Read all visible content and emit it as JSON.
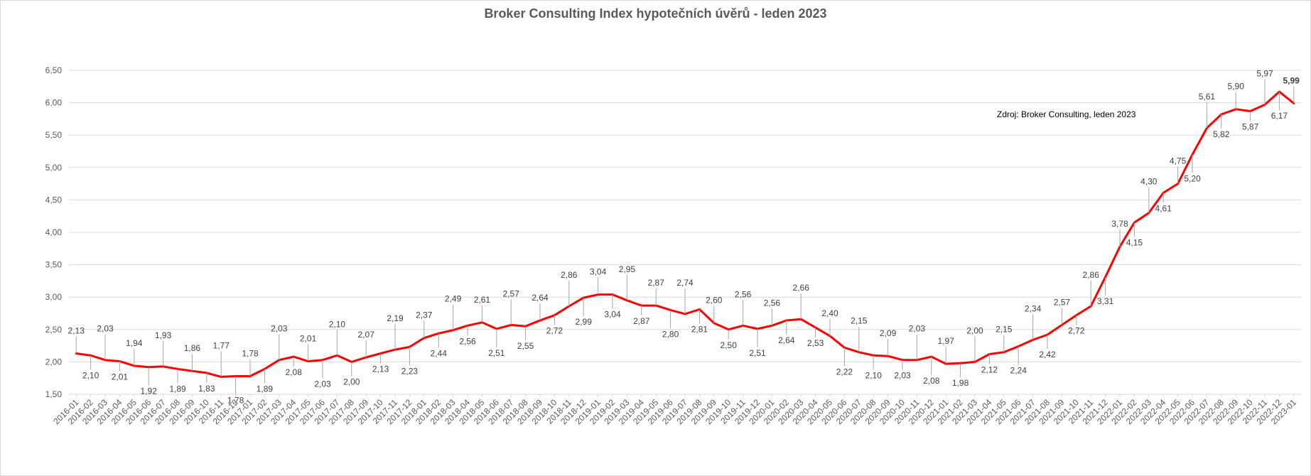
{
  "chart_data": {
    "type": "line",
    "title": "Broker Consulting Index hypotečních úvěrů - leden 2023",
    "annotation": "Zdroj: Broker Consulting, leden 2023",
    "xlabel": "",
    "ylabel": "",
    "ylim": [
      1.5,
      6.5
    ],
    "yticks": [
      "1,50",
      "2,00",
      "2,50",
      "3,00",
      "3,50",
      "4,00",
      "4,50",
      "5,00",
      "5,50",
      "6,00",
      "6,50"
    ],
    "grid": true,
    "legend": "none",
    "colors": {
      "line": "#ff0000",
      "grid": "#d9d9d9",
      "label": "#404040",
      "last_label": "#ff0000"
    },
    "x": [
      "2016-01",
      "2016-02",
      "2016-03",
      "2016-04",
      "2016-05",
      "2016-06",
      "2016-07",
      "2016-08",
      "2016-09",
      "2016-10",
      "2016-11",
      "2016-12",
      "2017-01",
      "2017-02",
      "2017-03",
      "2017-04",
      "2017-05",
      "2017-06",
      "2017-07",
      "2017-08",
      "2017-09",
      "2017-10",
      "2017-11",
      "2017-12",
      "2018-01",
      "2018-02",
      "2018-03",
      "2018-04",
      "2018-05",
      "2018-06",
      "2018-07",
      "2018-08",
      "2018-09",
      "2018-10",
      "2018-11",
      "2018-12",
      "2019-01",
      "2019-02",
      "2019-03",
      "2019-04",
      "2019-05",
      "2019-06",
      "2019-07",
      "2019-08",
      "2019-09",
      "2019-10",
      "2019-11",
      "2019-12",
      "2020-01",
      "2020-02",
      "2020-03",
      "2020-04",
      "2020-05",
      "2020-06",
      "2020-07",
      "2020-08",
      "2020-09",
      "2020-10",
      "2020-11",
      "2020-12",
      "2021-01",
      "2021-02",
      "2021-03",
      "2021-04",
      "2021-05",
      "2021-06",
      "2021-07",
      "2021-08",
      "2021-09",
      "2021-10",
      "2021-11",
      "2021-12",
      "2022-01",
      "2022-02",
      "2022-03",
      "2022-04",
      "2022-05",
      "2022-06",
      "2022-07",
      "2022-08",
      "2022-09",
      "2022-10",
      "2022-11",
      "2022-12",
      "2023-01"
    ],
    "series": [
      {
        "values": [
          2.13,
          2.1,
          2.03,
          2.01,
          1.94,
          1.92,
          1.93,
          1.89,
          1.86,
          1.83,
          1.77,
          1.78,
          1.78,
          1.89,
          2.03,
          2.08,
          2.01,
          2.03,
          2.1,
          2.0,
          2.07,
          2.13,
          2.19,
          2.23,
          2.37,
          2.44,
          2.49,
          2.56,
          2.61,
          2.51,
          2.57,
          2.55,
          2.64,
          2.72,
          2.86,
          2.99,
          3.04,
          3.04,
          2.95,
          2.87,
          2.87,
          2.8,
          2.74,
          2.81,
          2.6,
          2.5,
          2.56,
          2.51,
          2.56,
          2.64,
          2.66,
          2.53,
          2.4,
          2.22,
          2.15,
          2.1,
          2.09,
          2.03,
          2.03,
          2.08,
          1.97,
          1.98,
          2.0,
          2.12,
          2.15,
          2.24,
          2.34,
          2.42,
          2.57,
          2.72,
          2.86,
          3.31,
          3.78,
          4.15,
          4.3,
          4.61,
          4.75,
          5.2,
          5.61,
          5.82,
          5.9,
          5.87,
          5.97,
          6.17,
          5.99
        ],
        "labels": [
          "2,13",
          "2,10",
          "2,03",
          "2,01",
          "1,94",
          "1,92",
          "1,93",
          "1,89",
          "1,86",
          "1,83",
          "1,77",
          "1,78",
          "1,78",
          "1,89",
          "2,03",
          "2,08",
          "2,01",
          "2,03",
          "2,10",
          "2,00",
          "2,07",
          "2,13",
          "2,19",
          "2,23",
          "2,37",
          "2,44",
          "2,49",
          "2,56",
          "2,61",
          "2,51",
          "2,57",
          "2,55",
          "2,64",
          "2,72",
          "2,86",
          "2,99",
          "3,04",
          "3,04",
          "2,95",
          "2,87",
          "2,87",
          "2,80",
          "2,74",
          "2,81",
          "2,60",
          "2,50",
          "2,56",
          "2,51",
          "2,56",
          "2,64",
          "2,66",
          "2,53",
          "2,40",
          "2,22",
          "2,15",
          "2,10",
          "2,09",
          "2,03",
          "2,03",
          "2,08",
          "1,97",
          "1,98",
          "2,00",
          "2,12",
          "2,15",
          "2,24",
          "2,34",
          "2,42",
          "2,57",
          "2,72",
          "2,86",
          "3,31",
          "3,78",
          "4,15",
          "4,30",
          "4,61",
          "4,75",
          "5,20",
          "5,61",
          "5,82",
          "5,90",
          "5,87",
          "5,97",
          "6,17",
          "5,99"
        ]
      }
    ]
  }
}
